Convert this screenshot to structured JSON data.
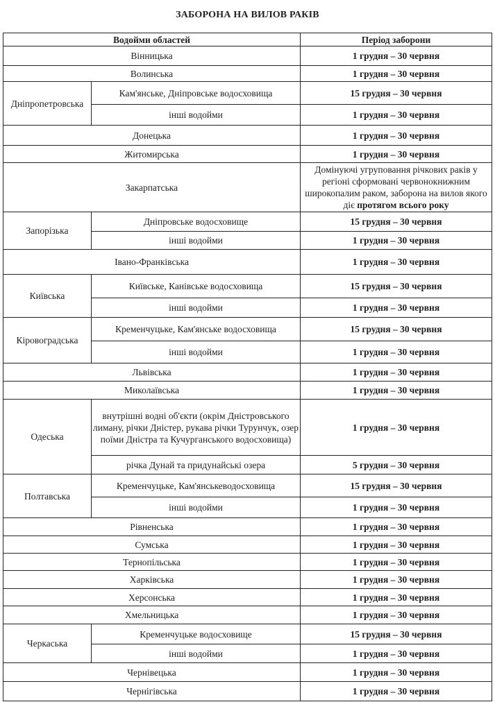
{
  "title": "ЗАБОРОНА НА ВИЛОВ РАКІВ",
  "headers": {
    "waters": "Водойми областей",
    "period": "Період заборони"
  },
  "rows": [
    {
      "region": "Вінницька",
      "items": [
        {
          "period": "1 грудня – 30 червня"
        }
      ]
    },
    {
      "region": "Волинська",
      "items": [
        {
          "period": "1 грудня – 30 червня"
        }
      ]
    },
    {
      "region": "Дніпропетровська",
      "items": [
        {
          "water": "Кам'янське, Дніпровське водосховища",
          "period": "15 грудня – 30 червня"
        },
        {
          "water": "інші водойми",
          "period": "1 грудня – 30 червня"
        }
      ]
    },
    {
      "region": "Донецька",
      "items": [
        {
          "period": "1 грудня – 30 червня"
        }
      ]
    },
    {
      "region": "Житомирська",
      "items": [
        {
          "period": "1 грудня – 30 червня"
        }
      ]
    },
    {
      "region": "Закарпатська",
      "items": [
        {
          "period_note": "Домінуючі угруповання річкових раків у регіоні сформовані червонокнижним широкопалим раком, заборона на вилов якого діє",
          "period": "протягом всього року"
        }
      ]
    },
    {
      "region": "Запорізька",
      "items": [
        {
          "water": "Дніпровське водосховище",
          "period": "15 грудня – 30 червня"
        },
        {
          "water": "інші водойми",
          "period": "1 грудня – 30 червня"
        }
      ]
    },
    {
      "region": "Івано-Франківська",
      "items": [
        {
          "period": "1 грудня – 30 червня"
        }
      ]
    },
    {
      "region": "Київська",
      "items": [
        {
          "water": "Київське, Канівське водосховища",
          "period": "15 грудня – 30 червня"
        },
        {
          "water": "інші водойми",
          "period": "1 грудня – 30 червня"
        }
      ]
    },
    {
      "region": "Кіровоградська",
      "items": [
        {
          "water": "Кременчуцьке, Кам'янське водосховища",
          "period": "15 грудня – 30 червня"
        },
        {
          "water": "інші водойми",
          "period": "1 грудня – 30 червня"
        }
      ]
    },
    {
      "region": "Львівська",
      "items": [
        {
          "period": "1 грудня – 30 червня"
        }
      ]
    },
    {
      "region": "Миколаївська",
      "items": [
        {
          "period": "1 грудня – 30 червня"
        }
      ]
    },
    {
      "region": "Одеська",
      "items": [
        {
          "water": "внутрішні водні об'єкти (окрім Дністровського лиману, річки Дністер, рукава річки Турунчук, озер поїми Дністра та Кучурганського водосховища)",
          "period": "1 грудня – 30 червня"
        },
        {
          "water": "річка Дунай та придунайські озера",
          "period": "5 грудня – 30 червня"
        }
      ]
    },
    {
      "region": "Полтавська",
      "items": [
        {
          "water": "Кременчуцьке, Кам'янськеводосховища",
          "period": "15 грудня – 30 червня"
        },
        {
          "water": "інші водойми",
          "period": "1 грудня – 30 червня"
        }
      ]
    },
    {
      "region": "Рівненська",
      "items": [
        {
          "period": "1 грудня – 30 червня"
        }
      ]
    },
    {
      "region": "Сумська",
      "items": [
        {
          "period": "1 грудня – 30 червня"
        }
      ]
    },
    {
      "region": "Тернопільська",
      "items": [
        {
          "period": "1 грудня – 30 червня"
        }
      ]
    },
    {
      "region": "Харківська",
      "items": [
        {
          "period": "1 грудня – 30 червня"
        }
      ]
    },
    {
      "region": "Херсонська",
      "items": [
        {
          "period": "1 грудня – 30 червня"
        }
      ]
    },
    {
      "region": "Хмельницька",
      "items": [
        {
          "period": "1 грудня – 30 червня"
        }
      ]
    },
    {
      "region": "Черкаська",
      "items": [
        {
          "water": "Кременчуцьке водосховище",
          "period": "15 грудня – 30 червня"
        },
        {
          "water": "інші водойми",
          "period": "1 грудня – 30 червня"
        }
      ]
    },
    {
      "region": "Чернівецька",
      "items": [
        {
          "period": "1 грудня – 30 червня"
        }
      ]
    },
    {
      "region": "Чернігівська",
      "items": [
        {
          "period": "1 грудня – 30 червня"
        }
      ]
    }
  ]
}
